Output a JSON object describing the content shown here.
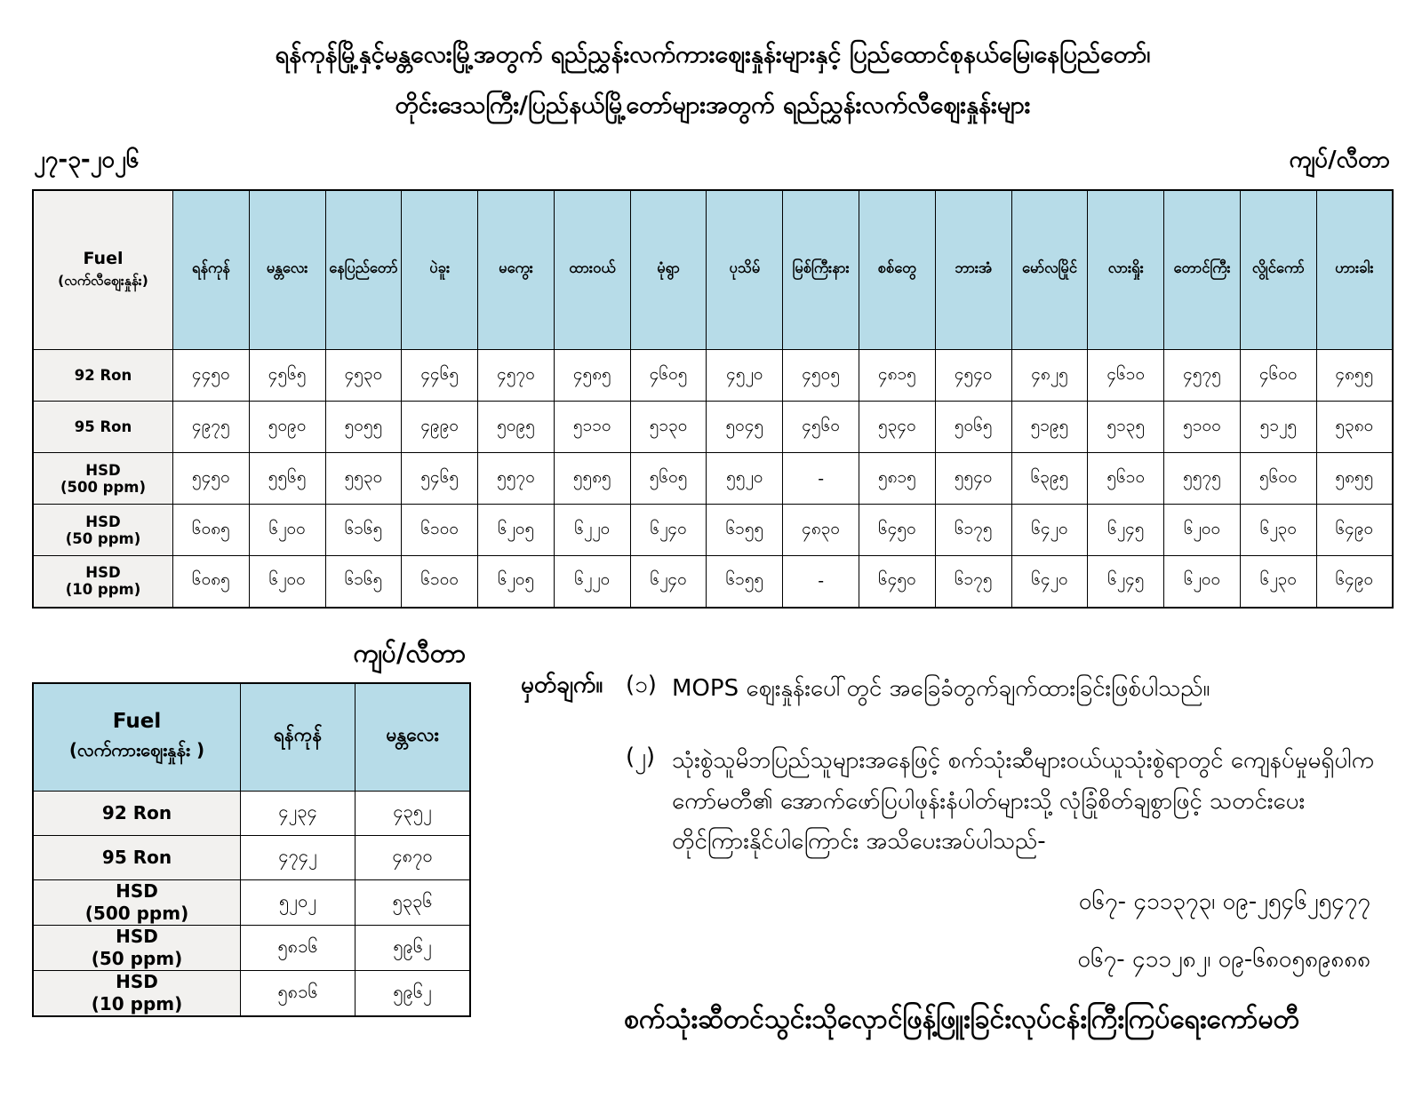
{
  "page": {
    "title_line1": "ရန်ကုန်မြို့နှင့်မန္တလေးမြို့အတွက် ရည်ညွှန်းလက်ကားဈေးနှုန်းများနှင့် ပြည်ထောင်စုနယ်မြေ၊နေပြည်တော်၊",
    "title_line2": "တိုင်းဒေသကြီး/ပြည်နယ်မြို့တော်များအတွက် ရည်ညွှန်းလက်လီဈေးနှုန်းများ",
    "date": "၂၇-၃-၂၀၂၆",
    "unit_label": "ကျပ်/လီတာ"
  },
  "retail_table": {
    "title_cell": {
      "line1": "Fuel",
      "line2": "(လက်လီဈေးနှုန်း)"
    },
    "columns": [
      "ရန်ကုန်",
      "မန္တလေး",
      "နေပြည်တော်",
      "ပဲခူး",
      "မကွေး",
      "ထားဝယ်",
      "မုံရွာ",
      "ပုသိမ်",
      "မြစ်ကြီးနား",
      "စစ်တွေ",
      "ဘားအံ",
      "မော်လမြိုင်",
      "လားရှိုး",
      "တောင်ကြီး",
      "လွိုင်ကော်",
      "ဟားခါး"
    ],
    "rows": [
      {
        "fuel": [
          "92 Ron"
        ],
        "values": [
          "၄၄၅၀",
          "၄၅၆၅",
          "၄၅၃၀",
          "၄၄၆၅",
          "၄၅၇၀",
          "၄၅၈၅",
          "၄၆၀၅",
          "၄၅၂၀",
          "၄၅၀၅",
          "၄၈၁၅",
          "၄၅၄၀",
          "၄၈၂၅",
          "၄၆၁၀",
          "၄၅၇၅",
          "၄၆၀၀",
          "၄၈၅၅"
        ]
      },
      {
        "fuel": [
          "95 Ron"
        ],
        "values": [
          "၄၉၇၅",
          "၅၀၉၀",
          "၅၀၅၅",
          "၄၉၉၀",
          "၅၀၉၅",
          "၅၁၁၀",
          "၅၁၃၀",
          "၅၀၄၅",
          "၄၅၆၀",
          "၅၃၄၀",
          "၅၀၆၅",
          "၅၁၉၅",
          "၅၁၃၅",
          "၅၁၀၀",
          "၅၁၂၅",
          "၅၃၈၀"
        ]
      },
      {
        "fuel": [
          "HSD",
          "(500 ppm)"
        ],
        "values": [
          "၅၄၅၀",
          "၅၅၆၅",
          "၅၅၃၀",
          "၅၄၆၅",
          "၅၅၇၀",
          "၅၅၈၅",
          "၅၆၀၅",
          "၅၅၂၀",
          "-",
          "၅၈၁၅",
          "၅၅၄၀",
          "၆၃၉၅",
          "၅၆၁၀",
          "၅၅၇၅",
          "၅၆၀၀",
          "၅၈၅၅"
        ]
      },
      {
        "fuel": [
          "HSD",
          "(50 ppm)"
        ],
        "values": [
          "၆၀၈၅",
          "၆၂၀၀",
          "၆၁၆၅",
          "၆၁၀၀",
          "၆၂၀၅",
          "၆၂၂၀",
          "၆၂၄၀",
          "၆၁၅၅",
          "၄၈၃၀",
          "၆၄၅၀",
          "၆၁၇၅",
          "၆၄၂၀",
          "၆၂၄၅",
          "၆၂၀၀",
          "၆၂၃၀",
          "၆၄၉၀"
        ]
      },
      {
        "fuel": [
          "HSD",
          "(10 ppm)"
        ],
        "values": [
          "၆၀၈၅",
          "၆၂၀၀",
          "၆၁၆၅",
          "၆၁၀၀",
          "၆၂၀၅",
          "၆၂၂၀",
          "၆၂၄၀",
          "၆၁၅၅",
          "-",
          "၆၄၅၀",
          "၆၁၇၅",
          "၆၄၂၀",
          "၆၂၄၅",
          "၆၂၀၀",
          "၆၂၃၀",
          "၆၄၉၀"
        ]
      }
    ]
  },
  "wholesale_table": {
    "unit_label": "ကျပ်/လီတာ",
    "title_cell": {
      "line1": "Fuel",
      "line2": "(လက်ကားဈေးနှုန်း )"
    },
    "columns": [
      "ရန်ကုန်",
      "မန္တလေး"
    ],
    "rows": [
      {
        "fuel": [
          "92 Ron"
        ],
        "values": [
          "၄၂၃၄",
          "၄၃၅၂"
        ]
      },
      {
        "fuel": [
          "95 Ron"
        ],
        "values": [
          "၄၇၄၂",
          "၄၈၇၀"
        ]
      },
      {
        "fuel": [
          "HSD",
          "(500 ppm)"
        ],
        "values": [
          "၅၂၀၂",
          "၅၃၃၆"
        ]
      },
      {
        "fuel": [
          "HSD",
          "(50 ppm)"
        ],
        "values": [
          "၅၈၁၆",
          "၅၉၆၂"
        ]
      },
      {
        "fuel": [
          "HSD",
          "(10 ppm)"
        ],
        "values": [
          "၅၈၁၆",
          "၅၉၆၂"
        ]
      }
    ]
  },
  "notes": {
    "label": "မှတ်ချက်။",
    "items": [
      {
        "num": "(၁)",
        "text": "MOPS ဈေးနှုန်းပေါ်တွင် အခြေခံတွက်ချက်ထားခြင်းဖြစ်ပါသည်။"
      },
      {
        "num": "(၂)",
        "text": "သုံးစွဲသူမိဘပြည်သူများအနေဖြင့် စက်သုံးဆီများဝယ်ယူသုံးစွဲရာတွင် ကျေနပ်မှုမရှိပါက ကော်မတီ၏ အောက်ဖော်ပြပါဖုန်းနံပါတ်များသို့ လုံခြုံစိတ်ချစွာဖြင့် သတင်းပေး တိုင်ကြားနိုင်ပါကြောင်း အသိပေးအပ်ပါသည်-"
      }
    ],
    "phones": [
      "၀၆၇- ၄၁၁၃၇၃၊ ၀၉-၂၅၄၆၂၅၄၇၇",
      "၀၆၇- ၄၁၁၂၈၂၊ ၀၉-၆၈၀၅၈၉၈၈၈"
    ],
    "footer": "စက်သုံးဆီတင်သွင်းသိုလှောင်ဖြန့်ဖြူးခြင်းလုပ်ငန်းကြီးကြပ်ရေးကော်မတီ"
  },
  "colors": {
    "header_blue": "#b7dce8",
    "label_gray": "#f2f1ef",
    "border": "#000000"
  }
}
